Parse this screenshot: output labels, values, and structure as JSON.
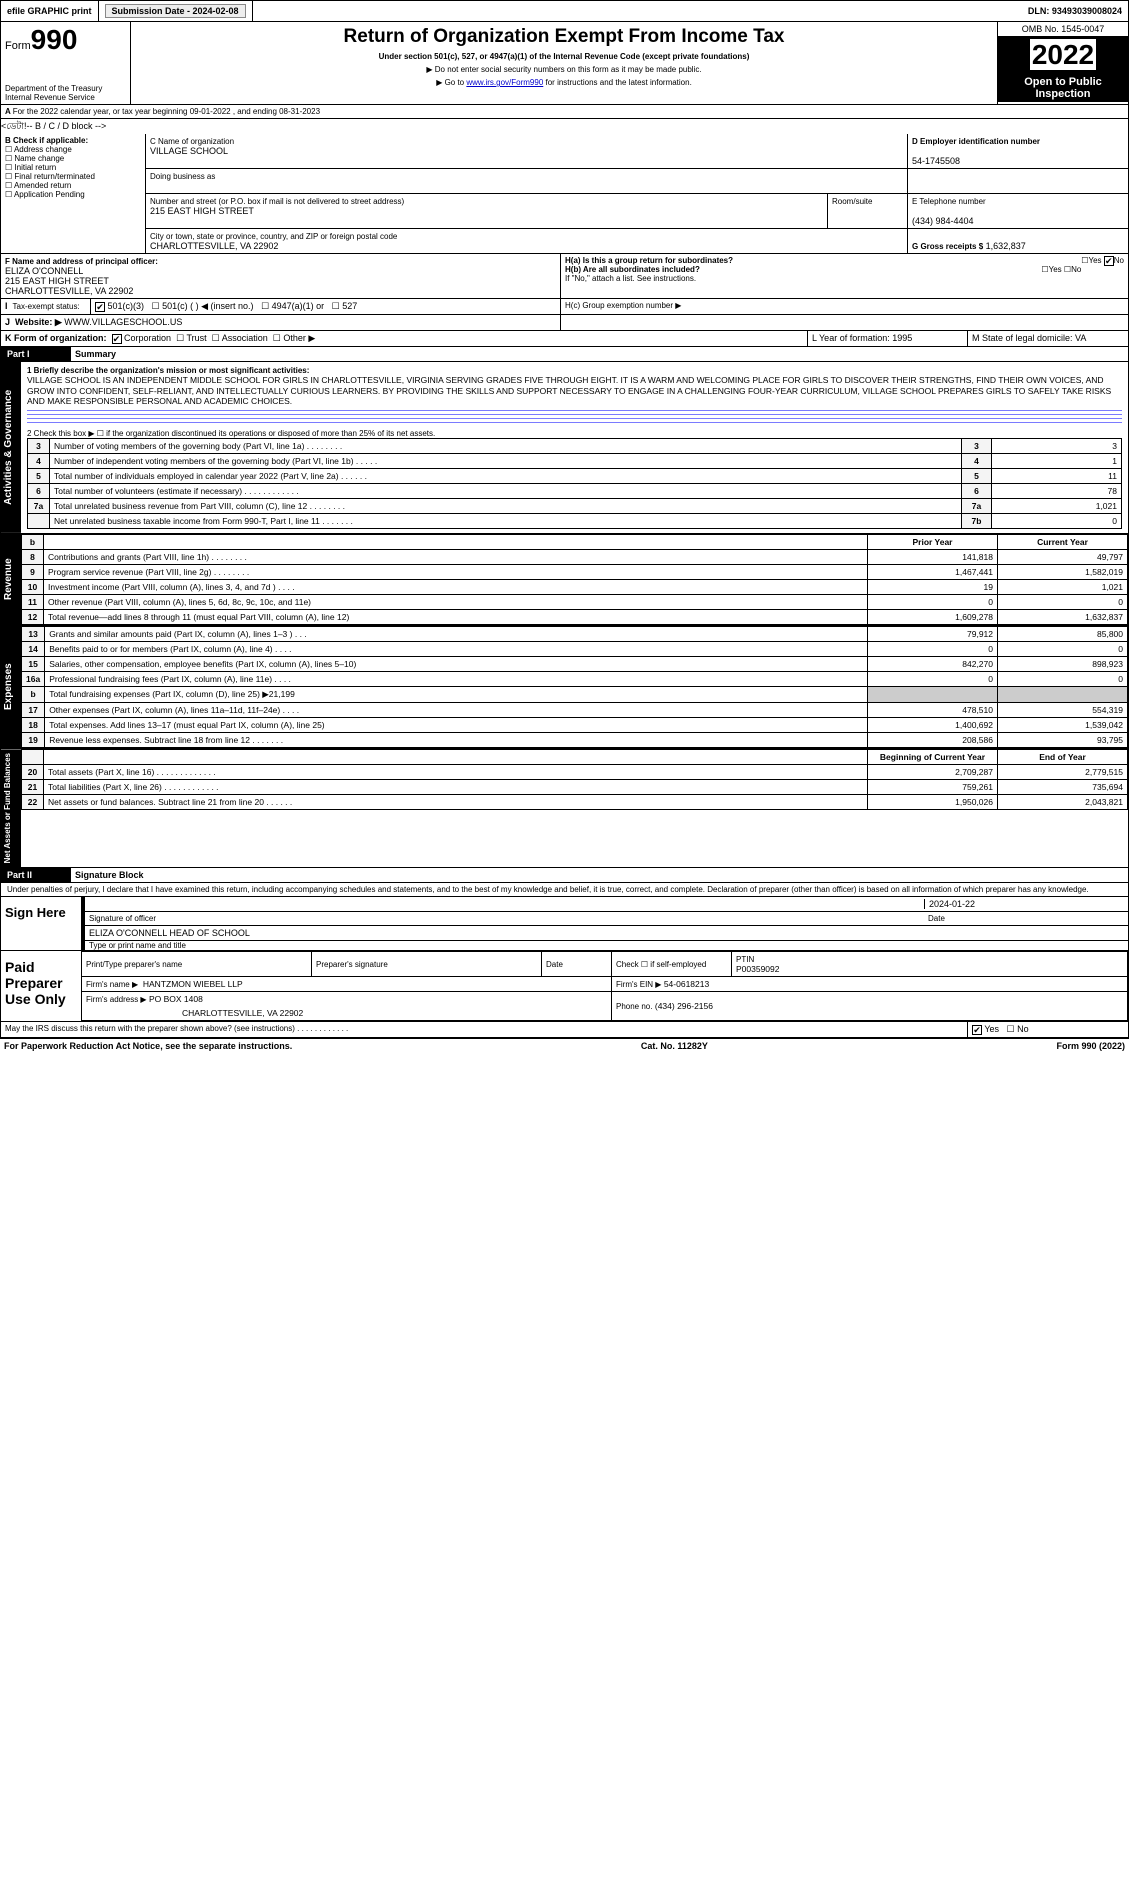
{
  "topbar": {
    "efile": "efile GRAPHIC print",
    "subdate_label": "Submission Date - 2024-02-08",
    "dln": "DLN: 93493039008024"
  },
  "header": {
    "form_label": "Form",
    "form_no": "990",
    "title": "Return of Organization Exempt From Income Tax",
    "sub1": "Under section 501(c), 527, or 4947(a)(1) of the Internal Revenue Code (except private foundations)",
    "sub2": "▶ Do not enter social security numbers on this form as it may be made public.",
    "sub3_pre": "▶ Go to ",
    "sub3_link": "www.irs.gov/Form990",
    "sub3_post": " for instructions and the latest information.",
    "dept": "Department of the Treasury",
    "irs": "Internal Revenue Service",
    "omb": "OMB No. 1545-0047",
    "year": "2022",
    "open": "Open to Public Inspection"
  },
  "A": {
    "text": "For the 2022 calendar year, or tax year beginning 09-01-2022    , and ending 08-31-2023"
  },
  "B": {
    "label": "B Check if applicable:",
    "items": [
      "Address change",
      "Name change",
      "Initial return",
      "Final return/terminated",
      "Amended return",
      "Application Pending"
    ]
  },
  "C": {
    "name_label": "C Name of organization",
    "name": "VILLAGE SCHOOL",
    "dba_label": "Doing business as",
    "dba": "",
    "street_label": "Number and street (or P.O. box if mail is not delivered to street address)",
    "street": "215 EAST HIGH STREET",
    "room_label": "Room/suite",
    "city_label": "City or town, state or province, country, and ZIP or foreign postal code",
    "city": "CHARLOTTESVILLE, VA  22902"
  },
  "D": {
    "label": "D Employer identification number",
    "val": "54-1745508"
  },
  "E": {
    "label": "E Telephone number",
    "val": "(434) 984-4404"
  },
  "G": {
    "label": "G Gross receipts $",
    "val": "1,632,837"
  },
  "F": {
    "label": "F  Name and address of principal officer:",
    "name": "ELIZA O'CONNELL",
    "l2": "215 EAST HIGH STREET",
    "l3": "CHARLOTTESVILLE, VA  22902"
  },
  "H": {
    "a": "H(a)  Is this a group return for subordinates?",
    "b": "H(b)  Are all subordinates included?",
    "note": "If \"No,\" attach a list. See instructions.",
    "c": "H(c)  Group exemption number ▶",
    "yes": "Yes",
    "no": "No"
  },
  "I": {
    "label": "Tax-exempt status:",
    "opts": [
      "501(c)(3)",
      "501(c) (   ) ◀ (insert no.)",
      "4947(a)(1) or",
      "527"
    ]
  },
  "J": {
    "label": "Website: ▶",
    "val": "WWW.VILLAGESCHOOL.US"
  },
  "K": {
    "label": "K Form of organization:",
    "opts": [
      "Corporation",
      "Trust",
      "Association",
      "Other ▶"
    ]
  },
  "L": {
    "label": "L Year of formation: 1995"
  },
  "M": {
    "label": "M State of legal domicile: VA"
  },
  "part1": {
    "hdr": "Part I",
    "title": "Summary"
  },
  "mission_label": "1   Briefly describe the organization's mission or most significant activities:",
  "mission": "VILLAGE SCHOOL IS AN INDEPENDENT MIDDLE SCHOOL FOR GIRLS IN CHARLOTTESVILLE, VIRGINIA SERVING GRADES FIVE THROUGH EIGHT. IT IS A WARM AND WELCOMING PLACE FOR GIRLS TO DISCOVER THEIR STRENGTHS, FIND THEIR OWN VOICES, AND GROW INTO CONFIDENT, SELF-RELIANT, AND INTELLECTUALLY CURIOUS LEARNERS. BY PROVIDING THE SKILLS AND SUPPORT NECESSARY TO ENGAGE IN A CHALLENGING FOUR-YEAR CURRICULUM, VILLAGE SCHOOL PREPARES GIRLS TO SAFELY TAKE RISKS AND MAKE RESPONSIBLE PERSONAL AND ACADEMIC CHOICES.",
  "line2": "2   Check this box ▶ ☐ if the organization discontinued its operations or disposed of more than 25% of its net assets.",
  "gov_lines": [
    {
      "n": "3",
      "t": "Number of voting members of the governing body (Part VI, line 1a)   .    .    .    .    .    .    .    .",
      "c": "3",
      "v": "3"
    },
    {
      "n": "4",
      "t": "Number of independent voting members of the governing body (Part VI, line 1b)   .    .    .    .    .",
      "c": "4",
      "v": "1"
    },
    {
      "n": "5",
      "t": "Total number of individuals employed in calendar year 2022 (Part V, line 2a)   .    .    .    .    .    .",
      "c": "5",
      "v": "11"
    },
    {
      "n": "6",
      "t": "Total number of volunteers (estimate if necessary)   .    .    .    .    .    .    .    .    .    .    .    .",
      "c": "6",
      "v": "78"
    },
    {
      "n": "7a",
      "t": "Total unrelated business revenue from Part VIII, column (C), line 12   .    .    .    .    .    .    .    .",
      "c": "7a",
      "v": "1,021"
    },
    {
      "n": "",
      "t": "Net unrelated business taxable income from Form 990-T, Part I, line 11   .    .    .    .    .    .    .",
      "c": "7b",
      "v": "0"
    }
  ],
  "yr_hdr": {
    "b": "b",
    "prior": "Prior Year",
    "curr": "Current Year"
  },
  "rev_lines": [
    {
      "n": "8",
      "t": "Contributions and grants (Part VIII, line 1h)   .    .    .    .    .    .    .    .",
      "p": "141,818",
      "c": "49,797"
    },
    {
      "n": "9",
      "t": "Program service revenue (Part VIII, line 2g)   .    .    .    .    .    .    .    .",
      "p": "1,467,441",
      "c": "1,582,019"
    },
    {
      "n": "10",
      "t": "Investment income (Part VIII, column (A), lines 3, 4, and 7d )   .    .    .    .",
      "p": "19",
      "c": "1,021"
    },
    {
      "n": "11",
      "t": "Other revenue (Part VIII, column (A), lines 5, 6d, 8c, 9c, 10c, and 11e)",
      "p": "0",
      "c": "0"
    },
    {
      "n": "12",
      "t": "Total revenue—add lines 8 through 11 (must equal Part VIII, column (A), line 12)",
      "p": "1,609,278",
      "c": "1,632,837"
    }
  ],
  "exp_lines": [
    {
      "n": "13",
      "t": "Grants and similar amounts paid (Part IX, column (A), lines 1–3 )   .    .    .",
      "p": "79,912",
      "c": "85,800"
    },
    {
      "n": "14",
      "t": "Benefits paid to or for members (Part IX, column (A), line 4)   .    .    .    .",
      "p": "0",
      "c": "0"
    },
    {
      "n": "15",
      "t": "Salaries, other compensation, employee benefits (Part IX, column (A), lines 5–10)",
      "p": "842,270",
      "c": "898,923"
    },
    {
      "n": "16a",
      "t": "Professional fundraising fees (Part IX, column (A), line 11e)   .    .    .    .",
      "p": "0",
      "c": "0"
    },
    {
      "n": "b",
      "t": "Total fundraising expenses (Part IX, column (D), line 25) ▶21,199",
      "p": "SHADE",
      "c": "SHADE"
    },
    {
      "n": "17",
      "t": "Other expenses (Part IX, column (A), lines 11a–11d, 11f–24e)   .    .    .    .",
      "p": "478,510",
      "c": "554,319"
    },
    {
      "n": "18",
      "t": "Total expenses. Add lines 13–17 (must equal Part IX, column (A), line 25)",
      "p": "1,400,692",
      "c": "1,539,042"
    },
    {
      "n": "19",
      "t": "Revenue less expenses. Subtract line 18 from line 12   .    .    .    .    .    .    .",
      "p": "208,586",
      "c": "93,795"
    }
  ],
  "na_hdr": {
    "b": "Beginning of Current Year",
    "e": "End of Year"
  },
  "na_lines": [
    {
      "n": "20",
      "t": "Total assets (Part X, line 16)   .    .    .    .    .    .    .    .    .    .    .    .    .",
      "p": "2,709,287",
      "c": "2,779,515"
    },
    {
      "n": "21",
      "t": "Total liabilities (Part X, line 26)   .    .    .    .    .    .    .    .    .    .    .    .",
      "p": "759,261",
      "c": "735,694"
    },
    {
      "n": "22",
      "t": "Net assets or fund balances. Subtract line 21 from line 20   .    .    .    .    .    .",
      "p": "1,950,026",
      "c": "2,043,821"
    }
  ],
  "part2": {
    "hdr": "Part II",
    "title": "Signature Block"
  },
  "perjury": "Under penalties of perjury, I declare that I have examined this return, including accompanying schedules and statements, and to the best of my knowledge and belief, it is true, correct, and complete. Declaration of preparer (other than officer) is based on all information of which preparer has any knowledge.",
  "sign": {
    "here": "Sign Here",
    "sig_label": "Signature of officer",
    "date_label": "Date",
    "date": "2024-01-22",
    "name": "ELIZA O'CONNELL  HEAD OF SCHOOL",
    "name_label": "Type or print name and title"
  },
  "paid": {
    "title": "Paid Preparer Use Only",
    "h1": "Print/Type preparer's name",
    "h2": "Preparer's signature",
    "h3": "Date",
    "h4a": "Check ☐ if self-employed",
    "h4b": "PTIN",
    "ptin": "P00359092",
    "firm_label": "Firm's name    ▶",
    "firm": "HANTZMON WIEBEL LLP",
    "ein_label": "Firm's EIN ▶",
    "ein": "54-0618213",
    "addr_label": "Firm's address ▶",
    "addr1": "PO BOX 1408",
    "addr2": "CHARLOTTESVILLE, VA  22902",
    "phone_label": "Phone no.",
    "phone": "(434) 296-2156"
  },
  "footer": {
    "discuss": "May the IRS discuss this return with the preparer shown above? (see instructions)   .    .    .    .    .    .    .    .    .    .    .    .",
    "yes": "Yes",
    "no": "No",
    "paperwork": "For Paperwork Reduction Act Notice, see the separate instructions.",
    "cat": "Cat. No. 11282Y",
    "form": "Form 990 (2022)"
  },
  "tabs": {
    "gov": "Activities & Governance",
    "rev": "Revenue",
    "exp": "Expenses",
    "na": "Net Assets or Fund Balances"
  }
}
